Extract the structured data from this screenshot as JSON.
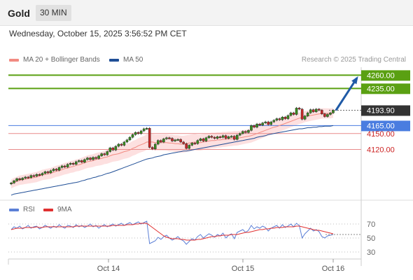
{
  "header": {
    "title": "Gold",
    "timeframe": "30 MIN"
  },
  "datetime": "Wednesday, October 15, 2025 3:56:52 PM CET",
  "legend": {
    "items": [
      {
        "label": "MA 20 + Bollinger Bands",
        "color": "#f28b82"
      },
      {
        "label": "MA 50",
        "color": "#1f4e96"
      }
    ],
    "credit": "Research © 2025 Trading Central"
  },
  "colors": {
    "resistance": "#5aa012",
    "pivot": "#4a7de0",
    "support": "#e88a8a",
    "last_price": "#333333",
    "arrow": "#1f5aa6",
    "bands": "#fde0e0",
    "candle": "#3a8a20",
    "rsi": "#5b7fd6",
    "rsi_ma": "#e03030"
  },
  "levels": [
    {
      "value": 4260.0,
      "label": "4260.00",
      "kind": "resistance"
    },
    {
      "value": 4235.0,
      "label": "4235.00",
      "kind": "resistance"
    },
    {
      "value": 4193.9,
      "label": "4193.90",
      "kind": "last"
    },
    {
      "value": 4165.0,
      "label": "4165.00",
      "kind": "pivot"
    },
    {
      "value": 4150.0,
      "label": "4150.00",
      "kind": "support"
    },
    {
      "value": 4120.0,
      "label": "4120.00",
      "kind": "support"
    }
  ],
  "rsi_panel": {
    "legend": [
      {
        "label": "RSI",
        "color": "#5b7fd6"
      },
      {
        "label": "9MA",
        "color": "#e03030"
      }
    ],
    "ticks": [
      "70",
      "50",
      "30"
    ]
  },
  "x_axis": {
    "labels": [
      "Oct 14",
      "Oct 15",
      "Oct 16"
    ]
  },
  "chart_data": {
    "type": "line",
    "ylim": [
      4035,
      4275
    ],
    "price_close": [
      4057,
      4061,
      4065,
      4063,
      4066,
      4068,
      4067,
      4071,
      4070,
      4073,
      4072,
      4075,
      4078,
      4076,
      4080,
      4083,
      4081,
      4086,
      4089,
      4087,
      4092,
      4094,
      4092,
      4097,
      4099,
      4096,
      4101,
      4104,
      4101,
      4105,
      4103,
      4108,
      4112,
      4110,
      4116,
      4123,
      4119,
      4126,
      4130,
      4128,
      4134,
      4138,
      4143,
      4148,
      4152,
      4150,
      4155,
      4159,
      4160,
      4124,
      4121,
      4130,
      4137,
      4134,
      4140,
      4142,
      4141,
      4136,
      4138,
      4139,
      4134,
      4131,
      4122,
      4128,
      4132,
      4131,
      4137,
      4140,
      4136,
      4142,
      4145,
      4143,
      4141,
      4144,
      4143,
      4146,
      4141,
      4144,
      4145,
      4139,
      4147,
      4150,
      4154,
      4152,
      4156,
      4165,
      4162,
      4168,
      4166,
      4170,
      4172,
      4167,
      4172,
      4175,
      4178,
      4176,
      4181,
      4178,
      4184,
      4189,
      4186,
      4198,
      4196,
      4177,
      4183,
      4189,
      4195,
      4191,
      4196,
      4194,
      4187,
      4182,
      4186,
      4189,
      4193.9
    ],
    "ma20": [
      4055,
      4058,
      4060,
      4062,
      4063,
      4064,
      4065,
      4066,
      4067,
      4068,
      4070,
      4072,
      4073,
      4074,
      4075,
      4077,
      4079,
      4080,
      4082,
      4084,
      4085,
      4087,
      4088,
      4090,
      4091,
      4093,
      4095,
      4097,
      4098,
      4099,
      4101,
      4102,
      4103,
      4105,
      4106,
      4108,
      4110,
      4111,
      4112,
      4114,
      4116,
      4117,
      4119,
      4122,
      4124,
      4127,
      4129,
      4131,
      4134,
      4134,
      4134,
      4133,
      4133,
      4133,
      4133,
      4133,
      4132,
      4132,
      4131,
      4131,
      4130,
      4130,
      4131,
      4132,
      4133,
      4134,
      4133,
      4133,
      4134,
      4135,
      4136,
      4137,
      4137,
      4138,
      4138,
      4139,
      4139,
      4140,
      4140,
      4141,
      4141,
      4142,
      4143,
      4144,
      4145,
      4146,
      4148,
      4150,
      4152,
      4154,
      4156,
      4158,
      4160,
      4162,
      4163,
      4165,
      4167,
      4169,
      4171,
      4173,
      4175,
      4177,
      4179,
      4180,
      4182,
      4183,
      4184,
      4185,
      4186,
      4187,
      4188,
      4188,
      4188,
      4188,
      4189
    ],
    "ma50": [
      4034,
      4036,
      4037,
      4038,
      4039,
      4040,
      4041,
      4042,
      4043,
      4044,
      4045,
      4046,
      4047,
      4048,
      4049,
      4050,
      4051,
      4052,
      4053,
      4054,
      4055,
      4056,
      4057,
      4058,
      4059,
      4061,
      4062,
      4064,
      4065,
      4067,
      4068,
      4070,
      4071,
      4073,
      4075,
      4076,
      4078,
      4080,
      4082,
      4084,
      4086,
      4088,
      4090,
      4092,
      4094,
      4096,
      4098,
      4100,
      4102,
      4103,
      4104,
      4106,
      4107,
      4108,
      4110,
      4111,
      4112,
      4113,
      4114,
      4115,
      4116,
      4117,
      4117,
      4118,
      4119,
      4120,
      4121,
      4122,
      4123,
      4124,
      4125,
      4126,
      4127,
      4128,
      4129,
      4130,
      4131,
      4132,
      4133,
      4134,
      4135,
      4136,
      4137,
      4138,
      4139,
      4140,
      4141,
      4143,
      4144,
      4145,
      4146,
      4148,
      4149,
      4150,
      4151,
      4152,
      4153,
      4154,
      4155,
      4156,
      4157,
      4158,
      4159,
      4159,
      4160,
      4161,
      4161,
      4162,
      4162,
      4163,
      4163,
      4164,
      4164,
      4164,
      4165
    ],
    "projection": {
      "from": 4193.9,
      "to": 4260
    },
    "rsi": [
      62,
      66,
      64,
      67,
      63,
      65,
      68,
      64,
      66,
      67,
      63,
      65,
      68,
      66,
      64,
      67,
      65,
      69,
      66,
      64,
      68,
      67,
      65,
      69,
      66,
      68,
      65,
      67,
      70,
      66,
      68,
      64,
      67,
      69,
      66,
      68,
      70,
      67,
      69,
      71,
      68,
      70,
      72,
      69,
      71,
      73,
      70,
      72,
      74,
      42,
      44,
      46,
      51,
      48,
      52,
      54,
      50,
      47,
      49,
      52,
      48,
      46,
      41,
      45,
      49,
      47,
      52,
      55,
      50,
      53,
      56,
      54,
      51,
      55,
      53,
      57,
      50,
      54,
      56,
      49,
      58,
      60,
      62,
      58,
      61,
      68,
      63,
      66,
      64,
      67,
      65,
      60,
      64,
      66,
      68,
      64,
      69,
      65,
      67,
      70,
      66,
      71,
      68,
      50,
      56,
      60,
      64,
      60,
      62,
      59,
      52,
      50,
      53,
      54,
      55
    ],
    "rsi_ma": [
      62,
      63,
      64,
      64,
      64,
      65,
      65,
      65,
      65,
      66,
      65,
      65,
      66,
      66,
      66,
      66,
      66,
      66,
      66,
      66,
      66,
      66,
      66,
      67,
      67,
      67,
      67,
      67,
      67,
      67,
      67,
      67,
      67,
      67,
      67,
      67,
      68,
      68,
      68,
      68,
      68,
      69,
      69,
      69,
      70,
      70,
      71,
      71,
      71,
      68,
      65,
      62,
      59,
      56,
      53,
      51,
      50,
      49,
      49,
      49,
      48,
      48,
      47,
      47,
      47,
      47,
      48,
      48,
      49,
      50,
      51,
      52,
      52,
      53,
      53,
      54,
      54,
      54,
      55,
      55,
      55,
      56,
      57,
      58,
      58,
      59,
      60,
      61,
      62,
      62,
      63,
      63,
      64,
      64,
      65,
      65,
      65,
      66,
      66,
      66,
      66,
      67,
      67,
      66,
      65,
      64,
      63,
      62,
      61,
      61,
      60,
      59,
      58,
      57,
      56
    ],
    "rsi_ylim": [
      20,
      80
    ]
  }
}
